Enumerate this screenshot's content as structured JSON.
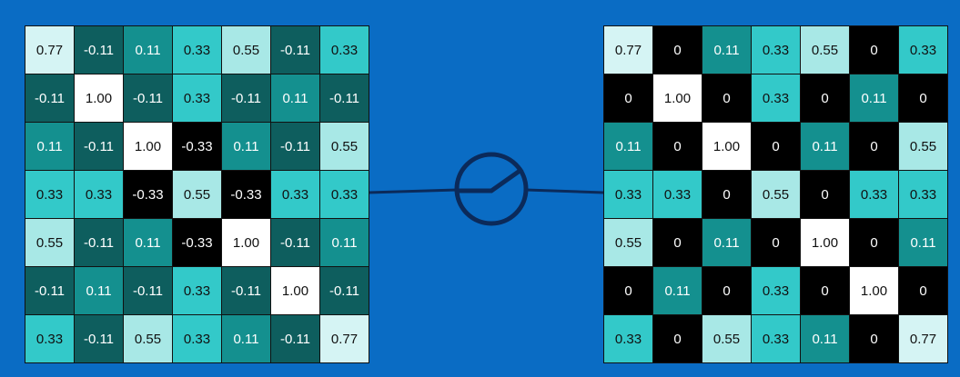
{
  "left_grid": {
    "rows": [
      [
        "0.77",
        "-0.11",
        "0.11",
        "0.33",
        "0.55",
        "-0.11",
        "0.33"
      ],
      [
        "-0.11",
        "1.00",
        "-0.11",
        "0.33",
        "-0.11",
        "0.11",
        "-0.11"
      ],
      [
        "0.11",
        "-0.11",
        "1.00",
        "-0.33",
        "0.11",
        "-0.11",
        "0.55"
      ],
      [
        "0.33",
        "0.33",
        "-0.33",
        "0.55",
        "-0.33",
        "0.33",
        "0.33"
      ],
      [
        "0.55",
        "-0.11",
        "0.11",
        "-0.33",
        "1.00",
        "-0.11",
        "0.11"
      ],
      [
        "-0.11",
        "0.11",
        "-0.11",
        "0.33",
        "-0.11",
        "1.00",
        "-0.11"
      ],
      [
        "0.33",
        "-0.11",
        "0.55",
        "0.33",
        "0.11",
        "-0.11",
        "0.77"
      ]
    ]
  },
  "right_grid": {
    "rows": [
      [
        "0.77",
        "0",
        "0.11",
        "0.33",
        "0.55",
        "0",
        "0.33"
      ],
      [
        "0",
        "1.00",
        "0",
        "0.33",
        "0",
        "0.11",
        "0"
      ],
      [
        "0.11",
        "0",
        "1.00",
        "0",
        "0.11",
        "0",
        "0.55"
      ],
      [
        "0.33",
        "0.33",
        "0",
        "0.55",
        "0",
        "0.33",
        "0.33"
      ],
      [
        "0.55",
        "0",
        "0.11",
        "0",
        "1.00",
        "0",
        "0.11"
      ],
      [
        "0",
        "0.11",
        "0",
        "0.33",
        "0",
        "1.00",
        "0"
      ],
      [
        "0.33",
        "0",
        "0.55",
        "0.33",
        "0.11",
        "0",
        "0.77"
      ]
    ]
  }
}
